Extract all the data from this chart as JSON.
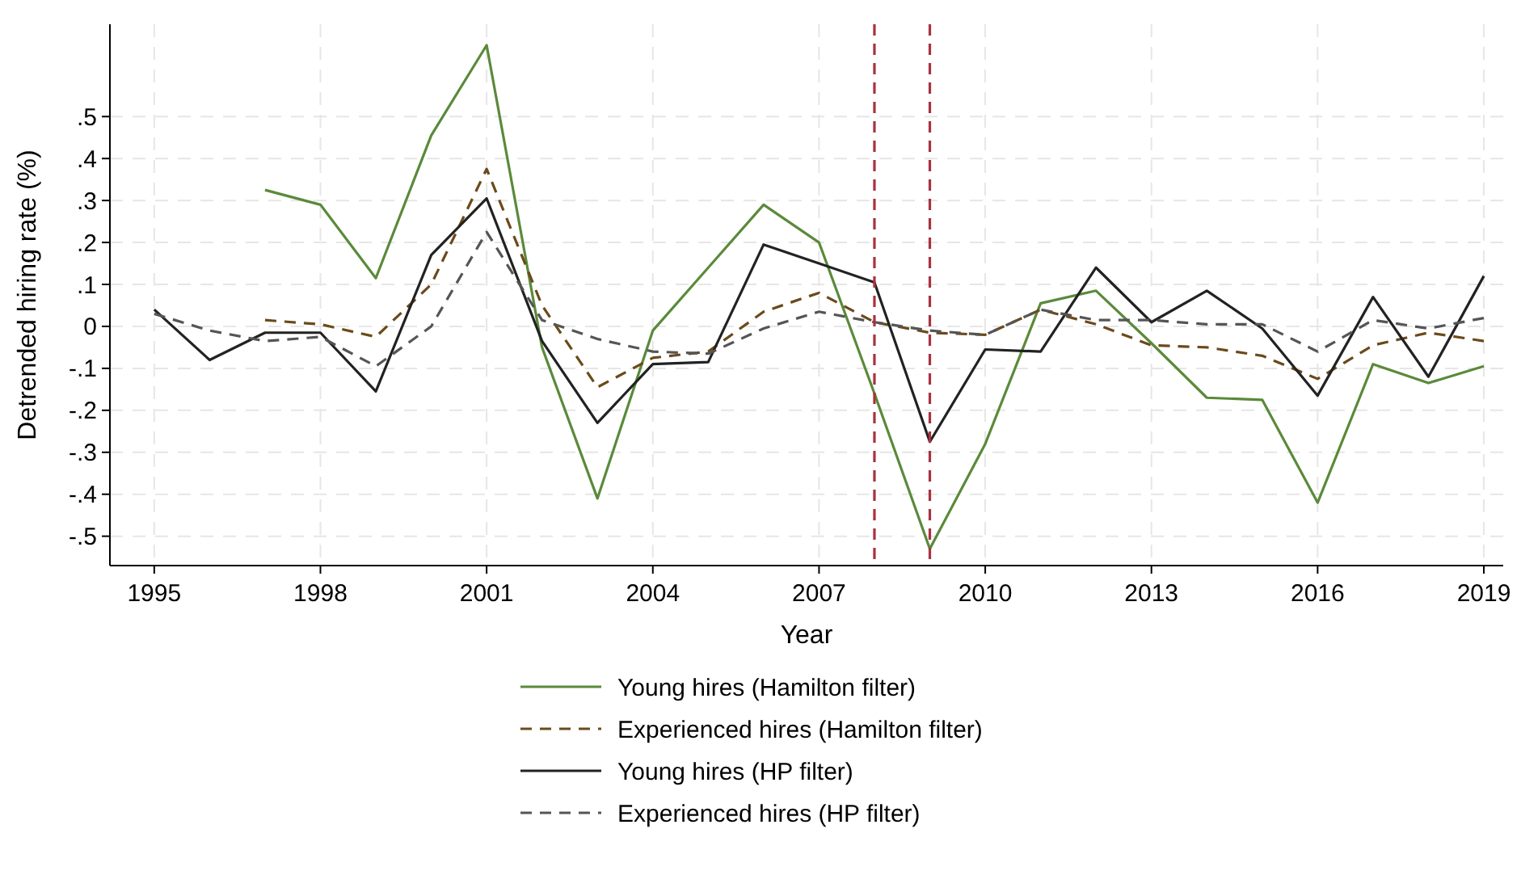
{
  "chart_data": {
    "type": "line",
    "xlabel": "Year",
    "ylabel": "Detrended hiring rate (%)",
    "x": [
      1995,
      1996,
      1997,
      1998,
      1999,
      2000,
      2001,
      2002,
      2003,
      2004,
      2005,
      2006,
      2007,
      2008,
      2009,
      2010,
      2011,
      2012,
      2013,
      2014,
      2015,
      2016,
      2017,
      2018,
      2019
    ],
    "xlim": [
      1994.2,
      2019.35
    ],
    "xticks": [
      1995,
      1998,
      2001,
      2004,
      2007,
      2010,
      2013,
      2016,
      2019
    ],
    "ylim": [
      -0.57,
      0.72
    ],
    "yticks": [
      {
        "value": -0.5,
        "label": "-.5"
      },
      {
        "value": -0.4,
        "label": "-.4"
      },
      {
        "value": -0.3,
        "label": "-.3"
      },
      {
        "value": -0.2,
        "label": "-.2"
      },
      {
        "value": -0.1,
        "label": "-.1"
      },
      0,
      {
        "value": 0.1,
        "label": ".1"
      },
      {
        "value": 0.2,
        "label": ".2"
      },
      {
        "value": 0.3,
        "label": ".3"
      },
      {
        "value": 0.4,
        "label": ".4"
      },
      {
        "value": 0.5,
        "label": ".5"
      }
    ],
    "grid": true,
    "legend": "bottom",
    "series": [
      {
        "name": "Young hires (Hamilton filter)",
        "color": "#5a8a3a",
        "line_style": "solid",
        "values": [
          null,
          null,
          0.325,
          0.29,
          0.115,
          0.455,
          0.67,
          -0.05,
          -0.41,
          -0.01,
          0.14,
          0.29,
          0.2,
          -0.16,
          -0.53,
          -0.28,
          0.055,
          0.085,
          -0.04,
          -0.17,
          -0.175,
          -0.42,
          -0.09,
          -0.135,
          -0.095
        ]
      },
      {
        "name": "Experienced hires (Hamilton filter)",
        "color": "#6b4a1a",
        "line_style": "dashed",
        "values": [
          null,
          null,
          0.015,
          0.005,
          -0.025,
          0.1,
          0.375,
          0.05,
          -0.145,
          -0.075,
          -0.06,
          0.035,
          0.08,
          0.01,
          -0.015,
          -0.02,
          0.04,
          0.005,
          -0.045,
          -0.05,
          -0.07,
          -0.125,
          -0.045,
          -0.015,
          -0.035
        ]
      },
      {
        "name": "Young hires (HP filter)",
        "color": "#222222",
        "line_style": "solid",
        "values": [
          0.04,
          -0.08,
          -0.015,
          -0.015,
          -0.155,
          0.17,
          0.305,
          -0.035,
          -0.23,
          -0.09,
          -0.085,
          0.195,
          0.15,
          0.105,
          -0.275,
          -0.055,
          -0.06,
          0.14,
          0.01,
          0.085,
          -0.005,
          -0.165,
          0.07,
          -0.12,
          0.12
        ]
      },
      {
        "name": "Experienced hires (HP filter)",
        "color": "#555555",
        "line_style": "dashed",
        "values": [
          0.03,
          -0.01,
          -0.035,
          -0.025,
          -0.095,
          0.0,
          0.225,
          0.015,
          -0.03,
          -0.06,
          -0.065,
          -0.005,
          0.035,
          0.01,
          -0.01,
          -0.02,
          0.04,
          0.015,
          0.015,
          0.005,
          0.005,
          -0.06,
          0.015,
          -0.005,
          0.02
        ]
      }
    ],
    "ref_lines": [
      {
        "axis": "x",
        "value": 2008,
        "color": "#a83240",
        "line_style": "dashed"
      },
      {
        "axis": "x",
        "value": 2009,
        "color": "#a83240",
        "line_style": "dashed"
      }
    ]
  }
}
